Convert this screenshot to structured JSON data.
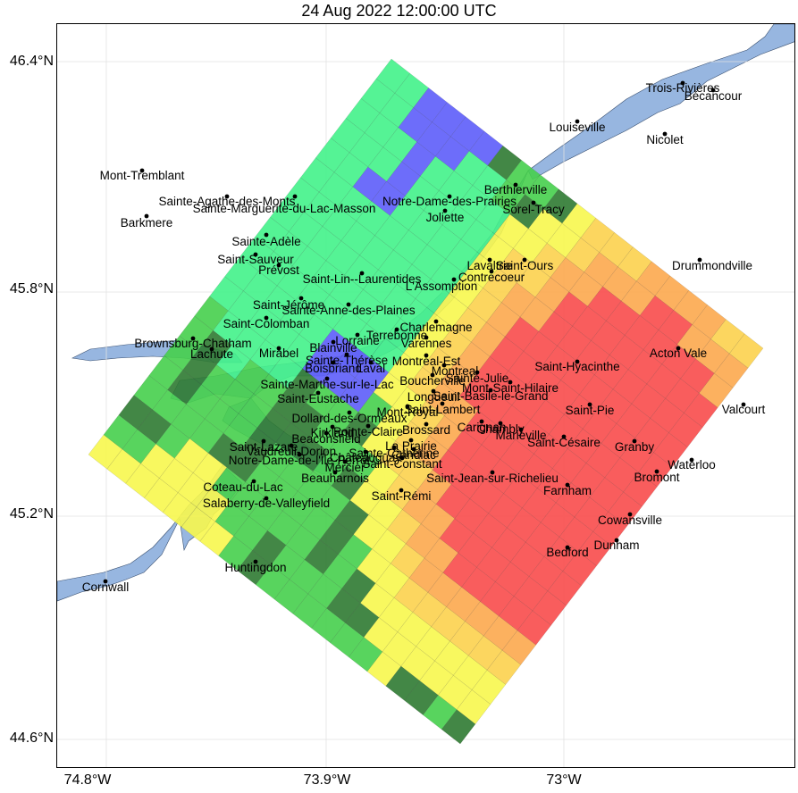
{
  "title": "24 Aug 2022 12:00:00 UTC",
  "axes": {
    "lat_labels": [
      "46.4°N",
      "45.8°N",
      "45.2°N",
      "44.6°N"
    ],
    "lon_labels": [
      "74.8°W",
      "73.9°W",
      "73°W"
    ]
  },
  "colors": {
    "water": "#97b6e0",
    "dark_green": "#2f7a32",
    "mid_green": "#46cf4c",
    "light_green": "#42f28a",
    "blue": "#5d5dfa",
    "yellow": "#f7f74e",
    "light_orange": "#fcd24e",
    "orange": "#fca84e",
    "red": "#f84b4b"
  },
  "cities": [
    {
      "name": "Trois-Rivières"
    },
    {
      "name": "Bécancour"
    },
    {
      "name": "Louiseville"
    },
    {
      "name": "Nicolet"
    },
    {
      "name": "Mont-Tremblant"
    },
    {
      "name": "Sainte-Agathe-des-Monts"
    },
    {
      "name": "Sainte-Marguerite-du-Lac-Masson"
    },
    {
      "name": "Barkmere"
    },
    {
      "name": "Notre-Dame-des-Prairies"
    },
    {
      "name": "Joliette"
    },
    {
      "name": "Berthierville"
    },
    {
      "name": "Sorel-Tracy"
    },
    {
      "name": "Sainte-Adèle"
    },
    {
      "name": "Saint-Sauveur"
    },
    {
      "name": "Prévost"
    },
    {
      "name": "Lavaltrie"
    },
    {
      "name": "Saint-Ours"
    },
    {
      "name": "Contrecoeur"
    },
    {
      "name": "Drummondville"
    },
    {
      "name": "Saint-Lin--Laurentides"
    },
    {
      "name": "L'Assomption"
    },
    {
      "name": "Saint-Jérôme"
    },
    {
      "name": "Sainte-Anne-des-Plaines"
    },
    {
      "name": "Saint-Colomban"
    },
    {
      "name": "Charlemagne"
    },
    {
      "name": "Terrebonne"
    },
    {
      "name": "Brownsburg-Chatham"
    },
    {
      "name": "Lachute"
    },
    {
      "name": "Mirabel"
    },
    {
      "name": "Lorraine"
    },
    {
      "name": "Blainville"
    },
    {
      "name": "Varennes"
    },
    {
      "name": "Sainte-Thérèse"
    },
    {
      "name": "Boisbriand"
    },
    {
      "name": "Laval"
    },
    {
      "name": "Montréal-Est"
    },
    {
      "name": "Montreal"
    },
    {
      "name": "Saint-Hyacinthe"
    },
    {
      "name": "Acton Vale"
    },
    {
      "name": "Boucherville"
    },
    {
      "name": "Sainte-Julie"
    },
    {
      "name": "Saint-Eustache"
    },
    {
      "name": "Mont-Saint-Hilaire"
    },
    {
      "name": "Saint-Basile-le-Grand"
    },
    {
      "name": "Longueuil"
    },
    {
      "name": "Saint-Pie"
    },
    {
      "name": "Valcourt"
    },
    {
      "name": "Sainte-Marthe-sur-le-Lac"
    },
    {
      "name": "Mont-Royal"
    },
    {
      "name": "Saint-Lambert"
    },
    {
      "name": "Dollard-des-Ormeaux"
    },
    {
      "name": "Pointe-Claire"
    },
    {
      "name": "Kirkland"
    },
    {
      "name": "Chambly"
    },
    {
      "name": "Carignan"
    },
    {
      "name": "Marieville"
    },
    {
      "name": "Saint-Césaire"
    },
    {
      "name": "Granby"
    },
    {
      "name": "Beaconsfield"
    },
    {
      "name": "Brossard"
    },
    {
      "name": "La Prairie"
    },
    {
      "name": "Saint-Lazare"
    },
    {
      "name": "Vaudreuil-Dorion"
    },
    {
      "name": "Sainte-Catherine"
    },
    {
      "name": "Candiac"
    },
    {
      "name": "Notre-Dame-de-l'Île-Perrot"
    },
    {
      "name": "Châteauguay"
    },
    {
      "name": "Saint-Constant"
    },
    {
      "name": "Mercier"
    },
    {
      "name": "Waterloo"
    },
    {
      "name": "Bromont"
    },
    {
      "name": "Beauharnois"
    },
    {
      "name": "Saint-Jean-sur-Richelieu"
    },
    {
      "name": "Farnham"
    },
    {
      "name": "Coteau-du-Lac"
    },
    {
      "name": "Saint-Rémi"
    },
    {
      "name": "Salaberry-de-Valleyfield"
    },
    {
      "name": "Cowansville"
    },
    {
      "name": "Dunham"
    },
    {
      "name": "Bedford"
    },
    {
      "name": "Huntingdon"
    },
    {
      "name": "Cornwall"
    }
  ]
}
